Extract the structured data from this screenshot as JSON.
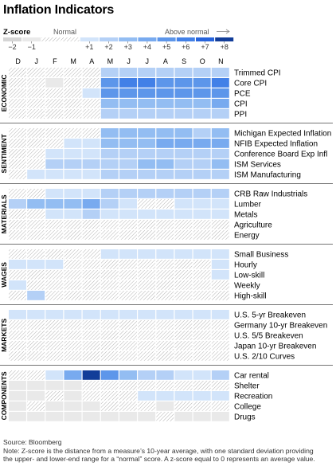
{
  "title": "Inflation Indicators",
  "colors": {
    "-2": "#d5d5d5",
    "-1": "#e9e9e9",
    "0": "#ffffff",
    "1": "#d2e4fa",
    "2": "#b4d0f6",
    "3": "#93bdf2",
    "4": "#78aaef",
    "5": "#5d96ea",
    "6": "#4280e7",
    "7": "#2764dc",
    "8": "#123d99",
    "hatch": "#ababab"
  },
  "legend": {
    "zscore_label": "Z-score",
    "normal_label": "Normal",
    "above_label": "Above normal",
    "ticks": [
      "−2",
      "−1",
      "+1",
      "+2",
      "+3",
      "+4",
      "+5",
      "+6",
      "+7",
      "+8"
    ]
  },
  "chart_data": {
    "type": "heatmap",
    "title": "Inflation Indicators",
    "value_encoding": "z-score level; 0 = normal range (hatched), negative = below normal (gray), positive = above normal (blue)",
    "columns": [
      "D",
      "J",
      "F",
      "M",
      "A",
      "M",
      "J",
      "J",
      "A",
      "S",
      "O",
      "N"
    ],
    "groups": [
      {
        "name": "ECONOMIC",
        "rows": [
          {
            "label": "Trimmed CPI",
            "values": [
              0,
              0,
              0,
              0,
              0,
              2,
              2,
              2,
              2,
              2,
              2,
              2
            ]
          },
          {
            "label": "Core CPI",
            "values": [
              0,
              0,
              -1,
              0,
              0,
              5,
              6,
              6,
              5,
              5,
              5,
              6
            ]
          },
          {
            "label": "PCE",
            "values": [
              0,
              0,
              0,
              0,
              1,
              5,
              5,
              5,
              5,
              5,
              5,
              5
            ]
          },
          {
            "label": "CPI",
            "values": [
              0,
              0,
              0,
              0,
              0,
              3,
              3,
              3,
              3,
              3,
              3,
              4
            ]
          },
          {
            "label": "PPI",
            "values": [
              0,
              0,
              0,
              0,
              0,
              2,
              2,
              2,
              2,
              2,
              2,
              2
            ]
          }
        ]
      },
      {
        "name": "SENTIMENT",
        "rows": [
          {
            "label": "Michigan Expected Inflation",
            "values": [
              0,
              0,
              0,
              0,
              0,
              3,
              3,
              3,
              3,
              3,
              2,
              3
            ]
          },
          {
            "label": "NFIB Expected Inflation",
            "values": [
              0,
              0,
              0,
              1,
              1,
              3,
              3,
              3,
              4,
              4,
              4,
              4
            ]
          },
          {
            "label": "Conference Board Exp Infl",
            "values": [
              0,
              0,
              1,
              1,
              1,
              2,
              2,
              2,
              2,
              2,
              2,
              2
            ]
          },
          {
            "label": "ISM Services",
            "values": [
              0,
              0,
              2,
              2,
              2,
              2,
              2,
              3,
              3,
              2,
              2,
              3
            ]
          },
          {
            "label": "ISM Manufacturing",
            "values": [
              0,
              1,
              1,
              1,
              1,
              2,
              2,
              2,
              2,
              2,
              2,
              2
            ]
          }
        ]
      },
      {
        "name": "MATERIALS",
        "rows": [
          {
            "label": "CRB Raw Industrials",
            "values": [
              0,
              0,
              1,
              1,
              1,
              2,
              2,
              2,
              2,
              2,
              2,
              2
            ]
          },
          {
            "label": "Lumber",
            "values": [
              2,
              3,
              3,
              3,
              4,
              2,
              1,
              0,
              0,
              1,
              1,
              1
            ]
          },
          {
            "label": "Metals",
            "values": [
              0,
              0,
              1,
              1,
              2,
              1,
              1,
              1,
              1,
              1,
              1,
              1
            ]
          },
          {
            "label": "Agriculture",
            "values": [
              0,
              0,
              0,
              0,
              0,
              0,
              0,
              0,
              0,
              0,
              0,
              0
            ]
          },
          {
            "label": "Energy",
            "values": [
              0,
              0,
              0,
              0,
              0,
              0,
              0,
              0,
              0,
              0,
              0,
              0
            ]
          }
        ]
      },
      {
        "name": "WAGES",
        "rows": [
          {
            "label": "Small Business",
            "values": [
              0,
              0,
              0,
              0,
              0,
              1,
              1,
              1,
              1,
              1,
              1,
              1
            ]
          },
          {
            "label": "Hourly",
            "values": [
              1,
              1,
              1,
              0,
              0,
              0,
              0,
              0,
              0,
              0,
              0,
              1
            ]
          },
          {
            "label": "Low-skill",
            "values": [
              0,
              0,
              0,
              0,
              0,
              0,
              0,
              0,
              0,
              0,
              0,
              1
            ]
          },
          {
            "label": "Weekly",
            "values": [
              1,
              0,
              0,
              0,
              0,
              0,
              0,
              0,
              0,
              0,
              0,
              0
            ]
          },
          {
            "label": "High-skill",
            "values": [
              0,
              2,
              0,
              0,
              0,
              0,
              0,
              0,
              0,
              0,
              0,
              0
            ]
          }
        ]
      },
      {
        "name": "MARKETS",
        "rows": [
          {
            "label": "U.S. 5-yr Breakeven",
            "values": [
              1,
              1,
              1,
              1,
              1,
              1,
              1,
              1,
              1,
              1,
              1,
              1
            ]
          },
          {
            "label": "Germany 10-yr Breakeven",
            "values": [
              0,
              0,
              0,
              0,
              0,
              0,
              0,
              0,
              0,
              0,
              0,
              0
            ]
          },
          {
            "label": "U.S. 5/5 Breakeven",
            "values": [
              0,
              0,
              0,
              0,
              0,
              0,
              0,
              0,
              0,
              0,
              0,
              0
            ]
          },
          {
            "label": "Japan 10-yr Breakeven",
            "values": [
              0,
              0,
              0,
              0,
              0,
              0,
              0,
              0,
              0,
              0,
              0,
              0
            ]
          },
          {
            "label": "U.S. 2/10 Curves",
            "values": [
              0,
              0,
              0,
              0,
              0,
              0,
              0,
              0,
              0,
              0,
              0,
              0
            ]
          }
        ]
      },
      {
        "name": "COMPONENTS",
        "rows": [
          {
            "label": "Car rental",
            "values": [
              0,
              0,
              1,
              4,
              8,
              5,
              3,
              2,
              2,
              1,
              1,
              2
            ]
          },
          {
            "label": "Shelter",
            "values": [
              -1,
              -1,
              -1,
              -1,
              0,
              0,
              0,
              0,
              0,
              0,
              0,
              0
            ]
          },
          {
            "label": "Recreation",
            "values": [
              -1,
              -1,
              0,
              -1,
              0,
              0,
              0,
              1,
              1,
              1,
              1,
              1
            ]
          },
          {
            "label": "College",
            "values": [
              -1,
              0,
              -1,
              -1,
              -1,
              0,
              0,
              0,
              -1,
              0,
              0,
              0
            ]
          },
          {
            "label": "Drugs",
            "values": [
              -1,
              -1,
              -1,
              -1,
              -1,
              -1,
              -1,
              -1,
              0,
              -1,
              -1,
              -1
            ]
          }
        ]
      }
    ]
  },
  "footer": {
    "source": "Source: Bloomberg",
    "note_line1": "Note: Z-score is the distance from a measure’s 10-year average, with one standard deviation providing",
    "note_line2": "the upper- and lower-end range for a “normal” score. A z-score equal to 0 represents an average value."
  }
}
